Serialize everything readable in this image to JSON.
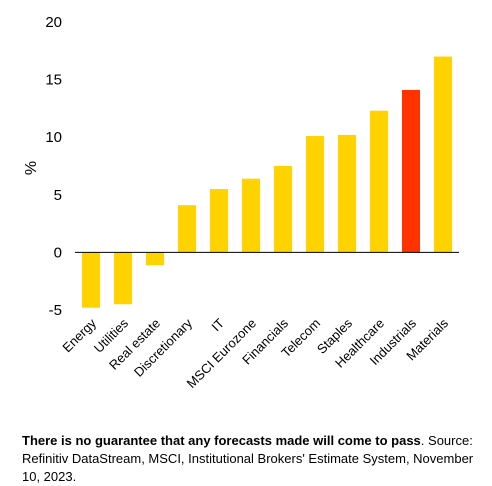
{
  "chart_data": {
    "type": "bar",
    "ylabel": "%",
    "ylim": [
      -5,
      20
    ],
    "yticks": [
      20,
      15,
      10,
      5,
      0,
      -5
    ],
    "grid": false,
    "categories": [
      "Energy",
      "Utilities",
      "Real estate",
      "Discretionary",
      "IT",
      "MSCI Eurozone",
      "Financials",
      "Telecom",
      "Staples",
      "Healthcare",
      "Industrials",
      "Materials"
    ],
    "values": [
      -4.8,
      -4.5,
      -1.1,
      4.1,
      5.5,
      6.4,
      7.5,
      10.1,
      10.2,
      12.3,
      14.1,
      17.0
    ],
    "colors": [
      "#FFD200",
      "#FFD200",
      "#FFD200",
      "#FFD200",
      "#FFD200",
      "#FFD200",
      "#FFD200",
      "#FFD200",
      "#FFD200",
      "#FFD200",
      "#FF3300",
      "#FFD200"
    ]
  },
  "footnote": {
    "bold": "There is no guarantee that any forecasts made will come to pass",
    "rest": ". Source: Refinitiv DataStream, MSCI, Institutional Brokers' Estimate System, November 10, 2023."
  }
}
